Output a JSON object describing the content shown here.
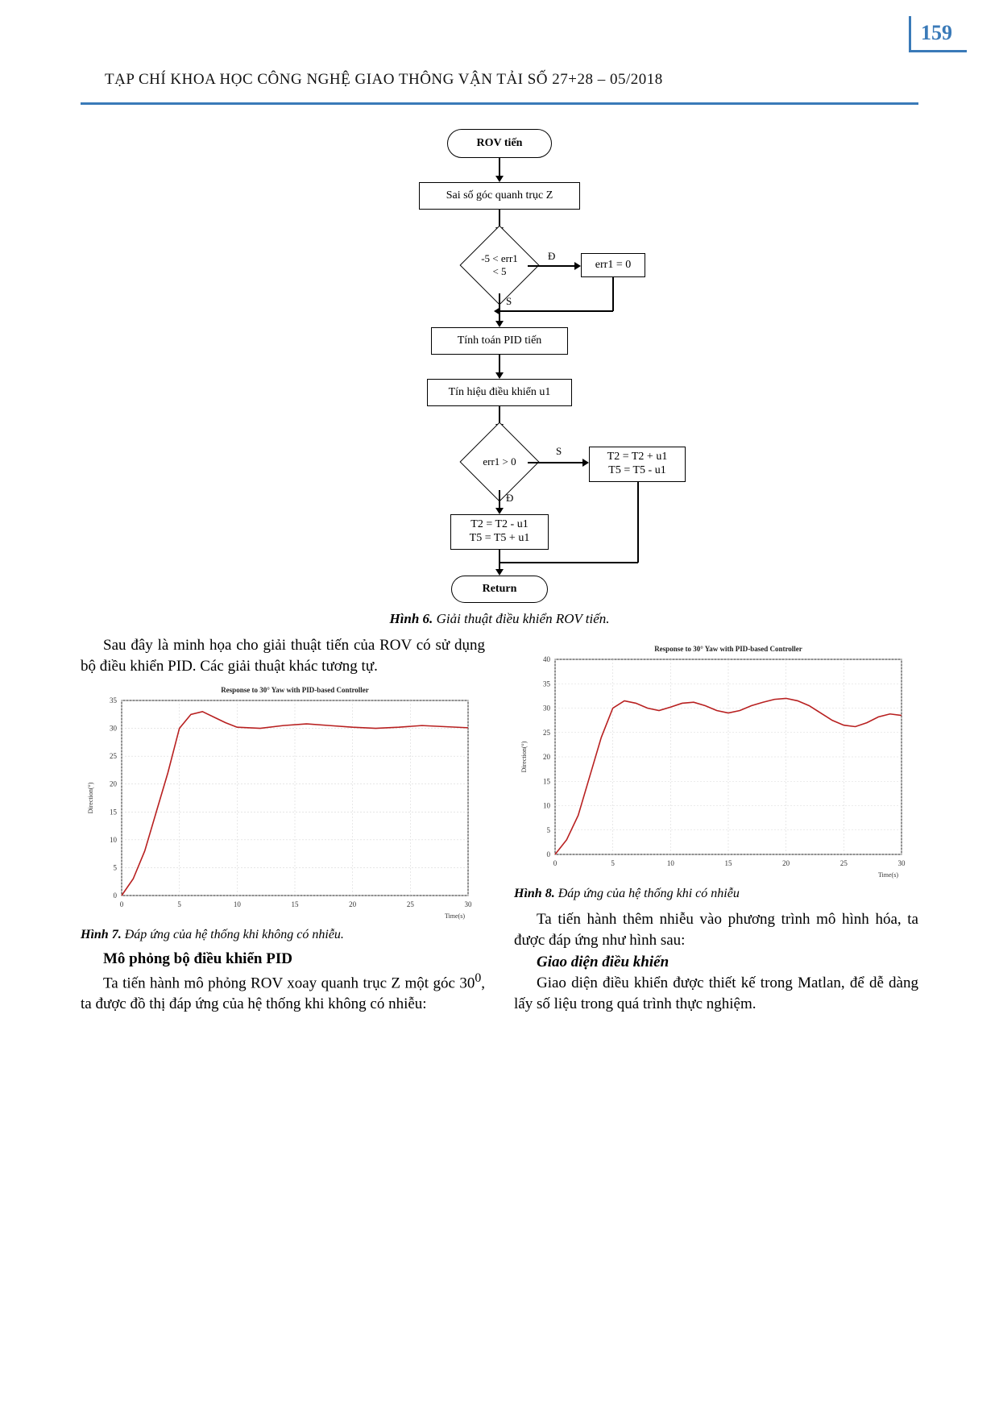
{
  "header": {
    "page_number": "159",
    "journal_title": "TẠP CHÍ KHOA HỌC CÔNG NGHỆ GIAO THÔNG VẬN TẢI SỐ 27+28 – 05/2018",
    "accent_color": "#3a7ab8"
  },
  "flowchart": {
    "caption_prefix": "Hình 6.",
    "caption_text": "Giải thuật điều khiển ROV tiến.",
    "nodes": {
      "start": "ROV tiến",
      "n1": "Sai số góc quanh trục Z",
      "d1": "-5 < err1 < 5",
      "side": "err1 = 0",
      "n2": "Tính toán PID tiến",
      "n3": "Tín hiệu điều khiển u1",
      "d2": "err1 > 0",
      "right_box": "T2 = T2 + u1\nT5 = T5 - u1",
      "left_box": "T2 = T2 - u1\nT5 = T5 + u1",
      "end": "Return"
    },
    "labels": {
      "D": "Đ",
      "S": "S"
    }
  },
  "col_left": {
    "p1": "Sau đây là minh họa cho giải thuật tiến của ROV có sử dụng bộ điều khiển PID. Các giải thuật khác tương tự.",
    "fig7_caption_prefix": "Hình 7.",
    "fig7_caption_text": "Đáp ứng của hệ thống khi không có nhiễu.",
    "h1": "Mô phỏng bộ điều khiển PID",
    "p2_a": "Ta tiến hành mô phỏng ROV xoay quanh trục Z một góc 30",
    "p2_sup": "0",
    "p2_b": ", ta được đồ thị đáp ứng của hệ thống khi không có nhiễu:"
  },
  "col_right": {
    "fig8_caption_prefix": "Hình 8.",
    "fig8_caption_text": "Đáp ứng của hệ thống khi có nhiễu",
    "p1": "Ta tiến hành thêm nhiễu vào phương trình mô hình hóa, ta được đáp ứng như hình sau:",
    "h1": "Giao diện điều khiển",
    "p2": "Giao diện điều khiển được thiết kế trong Matlan, để dễ dàng lấy số liệu trong quá trình thực nghiệm."
  },
  "chart7": {
    "type": "line",
    "title": "Response to 30° Yaw with PID-based Controller",
    "title_fontsize": 9,
    "xlabel": "Time(s)",
    "ylabel": "Direction(°)",
    "xlim": [
      0,
      30
    ],
    "xtick_step": 5,
    "ylim": [
      0,
      35
    ],
    "ytick_step": 5,
    "line_color": "#b82020",
    "grid_color": "#d8d8d8",
    "background_color": "#ffffff",
    "series": {
      "x": [
        0,
        1,
        2,
        3,
        4,
        5,
        6,
        7,
        8,
        9,
        10,
        12,
        14,
        16,
        18,
        20,
        22,
        24,
        26,
        28,
        30
      ],
      "y": [
        0,
        3,
        8,
        15,
        22,
        30,
        32.5,
        33,
        32,
        31,
        30.2,
        30,
        30.5,
        30.8,
        30.5,
        30.2,
        30,
        30.2,
        30.5,
        30.3,
        30.1
      ]
    }
  },
  "chart8": {
    "type": "line",
    "title": "Response to 30° Yaw with PID-based Controller",
    "title_fontsize": 9,
    "xlabel": "Time(s)",
    "ylabel": "Direction(°)",
    "xlim": [
      0,
      30
    ],
    "xtick_step": 5,
    "ylim": [
      0,
      40
    ],
    "ytick_step": 5,
    "line_color": "#b82020",
    "grid_color": "#d8d8d8",
    "background_color": "#ffffff",
    "series": {
      "x": [
        0,
        1,
        2,
        3,
        4,
        5,
        6,
        7,
        8,
        9,
        10,
        11,
        12,
        13,
        14,
        15,
        16,
        17,
        18,
        19,
        20,
        21,
        22,
        23,
        24,
        25,
        26,
        27,
        28,
        29,
        30
      ],
      "y": [
        0,
        3,
        8,
        16,
        24,
        30,
        31.5,
        31,
        30,
        29.5,
        30.2,
        31,
        31.2,
        30.5,
        29.5,
        29,
        29.5,
        30.5,
        31.2,
        31.8,
        32,
        31.5,
        30.5,
        29,
        27.5,
        26.5,
        26.2,
        27,
        28.2,
        28.8,
        28.5
      ]
    }
  }
}
